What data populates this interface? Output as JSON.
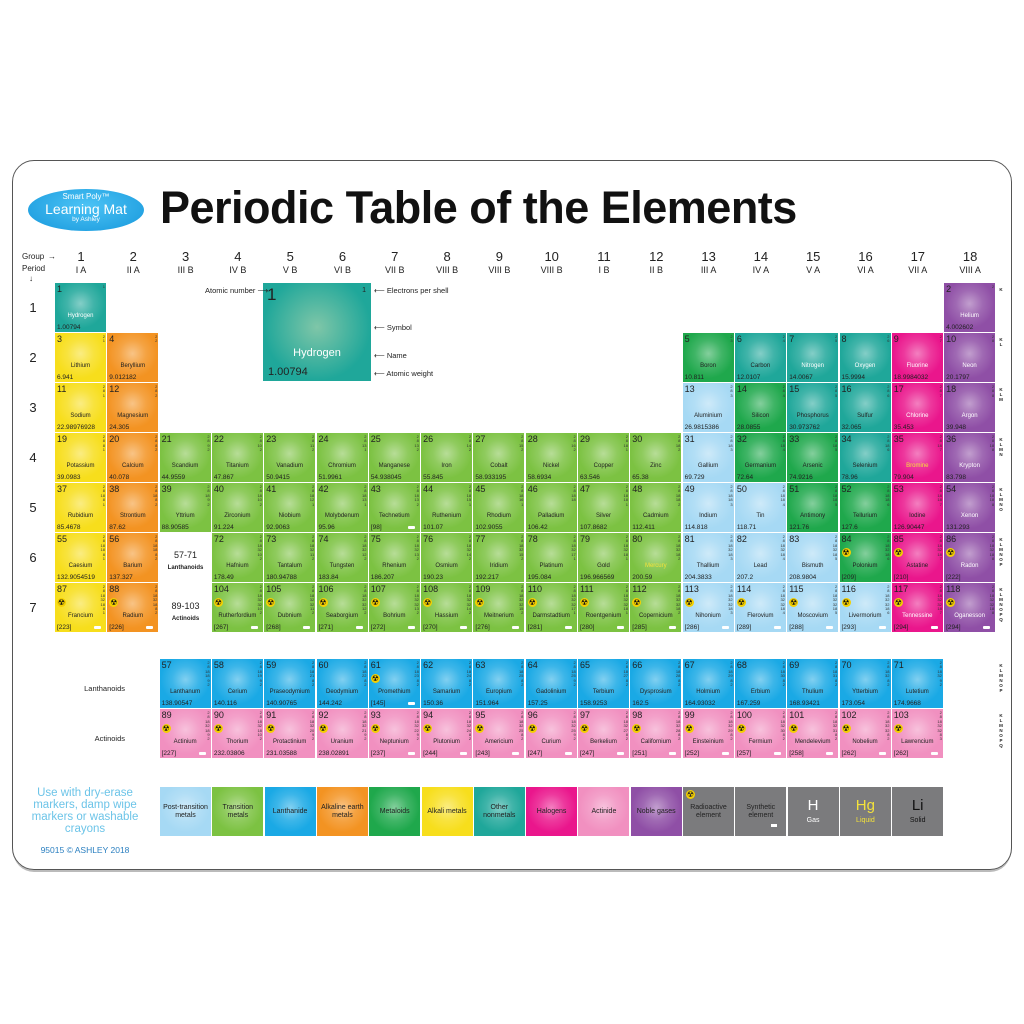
{
  "logo": {
    "line1": "Smart Poly™",
    "line2": "Learning Mat",
    "line3": "by Ashley"
  },
  "title": "Periodic Table of the Elements",
  "axis_labels": {
    "group": "Group",
    "period": "Period"
  },
  "groups": [
    [
      "1",
      "I A"
    ],
    [
      "2",
      "II A"
    ],
    [
      "3",
      "III B"
    ],
    [
      "4",
      "IV B"
    ],
    [
      "5",
      "V B"
    ],
    [
      "6",
      "VI B"
    ],
    [
      "7",
      "VII B"
    ],
    [
      "8",
      "VIII B"
    ],
    [
      "9",
      "VIII B"
    ],
    [
      "10",
      "VIII B"
    ],
    [
      "11",
      "I B"
    ],
    [
      "12",
      "II B"
    ],
    [
      "13",
      "III A"
    ],
    [
      "14",
      "IV A"
    ],
    [
      "15",
      "V A"
    ],
    [
      "16",
      "VI A"
    ],
    [
      "17",
      "VII A"
    ],
    [
      "18",
      "VIII A"
    ]
  ],
  "periods": [
    "1",
    "2",
    "3",
    "4",
    "5",
    "6",
    "7"
  ],
  "shell_labels": [
    "K",
    "K\nL",
    "K\nL\nM",
    "K\nL\nM\nN",
    "K\nL\nM\nN\nO",
    "K\nL\nM\nN\nO\nP",
    "K\nL\nM\nN\nO\nP\nQ"
  ],
  "f_shell_labels": [
    "K\nL\nM\nN\nO\nP",
    "K\nL\nM\nN\nO\nP\nQ"
  ],
  "key": {
    "number": "1",
    "electrons": "1",
    "name": "Hydrogen",
    "weight": "1.00794",
    "labels": {
      "atomic_number": "Atomic number",
      "electrons": "Electrons per shell",
      "symbol": "Symbol",
      "name": "Name",
      "weight": "Atomic weight"
    }
  },
  "placeholders": {
    "lanthanoids": {
      "range": "57-71",
      "label": "Lanthanoids"
    },
    "actinoids": {
      "range": "89-103",
      "label": "Actinoids"
    }
  },
  "row_labels": {
    "lanthanoids": "Lanthanoids",
    "actinoids": "Actinoids"
  },
  "categories": {
    "al": "#f7de1c",
    "ae": "#f39322",
    "tm": "#7cc242",
    "pt": "#a6d9f4",
    "md": "#1fa84c",
    "on": "#1fa79a",
    "ha": "#ea168c",
    "ng": "#8f4fa6",
    "la": "#1aa9e5",
    "ac": "#f190c0"
  },
  "name_colors": {
    "gas": "#ffffff",
    "liquid": "#f4e23a",
    "solid": "#222222"
  },
  "elements": [
    {
      "n": 1,
      "name": "Hydrogen",
      "w": "1.00794",
      "e": "1",
      "c": "on",
      "st": "gas"
    },
    {
      "n": 2,
      "name": "Helium",
      "w": "4.002602",
      "e": "2",
      "c": "ng",
      "st": "gas"
    },
    {
      "n": 3,
      "name": "Lithium",
      "w": "6.941",
      "e": "2 1",
      "c": "al"
    },
    {
      "n": 4,
      "name": "Beryllium",
      "w": "9.012182",
      "e": "2 2",
      "c": "ae"
    },
    {
      "n": 5,
      "name": "Boron",
      "w": "10.811",
      "e": "2 3",
      "c": "md"
    },
    {
      "n": 6,
      "name": "Carbon",
      "w": "12.0107",
      "e": "2 4",
      "c": "on"
    },
    {
      "n": 7,
      "name": "Nitrogen",
      "w": "14.0067",
      "e": "2 5",
      "c": "on",
      "st": "gas"
    },
    {
      "n": 8,
      "name": "Oxygen",
      "w": "15.9994",
      "e": "2 6",
      "c": "on",
      "st": "gas"
    },
    {
      "n": 9,
      "name": "Fluorine",
      "w": "18.9984032",
      "e": "2 7",
      "c": "ha",
      "st": "gas"
    },
    {
      "n": 10,
      "name": "Neon",
      "w": "20.1797",
      "e": "2 8",
      "c": "ng",
      "st": "gas"
    },
    {
      "n": 11,
      "name": "Sodium",
      "w": "22.98976928",
      "e": "2 8 1",
      "c": "al"
    },
    {
      "n": 12,
      "name": "Magnesium",
      "w": "24.305",
      "e": "2 8 2",
      "c": "ae"
    },
    {
      "n": 13,
      "name": "Aluminium",
      "w": "26.9815386",
      "e": "2 8 3",
      "c": "pt"
    },
    {
      "n": 14,
      "name": "Silicon",
      "w": "28.0855",
      "e": "2 8 4",
      "c": "md"
    },
    {
      "n": 15,
      "name": "Phosphorus",
      "w": "30.973762",
      "e": "2 8 5",
      "c": "on"
    },
    {
      "n": 16,
      "name": "Sulfur",
      "w": "32.065",
      "e": "2 8 6",
      "c": "on"
    },
    {
      "n": 17,
      "name": "Chlorine",
      "w": "35.453",
      "e": "2 8 7",
      "c": "ha",
      "st": "gas"
    },
    {
      "n": 18,
      "name": "Argon",
      "w": "39.948",
      "e": "2 8 8",
      "c": "ng",
      "st": "gas"
    },
    {
      "n": 19,
      "name": "Potassium",
      "w": "39.0983",
      "e": "2 8 8 1",
      "c": "al"
    },
    {
      "n": 20,
      "name": "Calcium",
      "w": "40.078",
      "e": "2 8 8 2",
      "c": "ae"
    },
    {
      "n": 21,
      "name": "Scandium",
      "w": "44.9559",
      "e": "2 8 9 2",
      "c": "tm"
    },
    {
      "n": 22,
      "name": "Titanium",
      "w": "47.867",
      "e": "2 8 10 2",
      "c": "tm"
    },
    {
      "n": 23,
      "name": "Vanadium",
      "w": "50.9415",
      "e": "2 8 11 2",
      "c": "tm"
    },
    {
      "n": 24,
      "name": "Chromium",
      "w": "51.9961",
      "e": "2 8 13 1",
      "c": "tm"
    },
    {
      "n": 25,
      "name": "Manganese",
      "w": "54.938045",
      "e": "2 8 13 2",
      "c": "tm"
    },
    {
      "n": 26,
      "name": "Iron",
      "w": "55.845",
      "e": "2 8 14 2",
      "c": "tm"
    },
    {
      "n": 27,
      "name": "Cobalt",
      "w": "58.933195",
      "e": "2 8 15 2",
      "c": "tm"
    },
    {
      "n": 28,
      "name": "Nickel",
      "w": "58.6934",
      "e": "2 8 16 2",
      "c": "tm"
    },
    {
      "n": 29,
      "name": "Copper",
      "w": "63.546",
      "e": "2 8 18 1",
      "c": "tm"
    },
    {
      "n": 30,
      "name": "Zinc",
      "w": "65.38",
      "e": "2 8 18 2",
      "c": "tm"
    },
    {
      "n": 31,
      "name": "Gallium",
      "w": "69.729",
      "e": "2 8 18 3",
      "c": "pt"
    },
    {
      "n": 32,
      "name": "Germanium",
      "w": "72.64",
      "e": "2 8 18 4",
      "c": "md"
    },
    {
      "n": 33,
      "name": "Arsenic",
      "w": "74.9216",
      "e": "2 8 18 5",
      "c": "md"
    },
    {
      "n": 34,
      "name": "Selenium",
      "w": "78.96",
      "e": "2 8 18 6",
      "c": "on"
    },
    {
      "n": 35,
      "name": "Bromine",
      "w": "79.904",
      "e": "2 8 18 7",
      "c": "ha",
      "st": "liquid"
    },
    {
      "n": 36,
      "name": "Krypton",
      "w": "83.798",
      "e": "2 8 18 8",
      "c": "ng",
      "st": "gas"
    },
    {
      "n": 37,
      "name": "Rubidium",
      "w": "85.4678",
      "e": "2 8 18 8 1",
      "c": "al"
    },
    {
      "n": 38,
      "name": "Strontium",
      "w": "87.62",
      "e": "2 8 18 8 2",
      "c": "ae"
    },
    {
      "n": 39,
      "name": "Yttrium",
      "w": "88.90585",
      "e": "2 8 18 9 2",
      "c": "tm"
    },
    {
      "n": 40,
      "name": "Zirconium",
      "w": "91.224",
      "e": "2 8 18 10 2",
      "c": "tm"
    },
    {
      "n": 41,
      "name": "Niobium",
      "w": "92.9063",
      "e": "2 8 18 12 1",
      "c": "tm"
    },
    {
      "n": 42,
      "name": "Molybdenum",
      "w": "95.96",
      "e": "2 8 18 13 1",
      "c": "tm"
    },
    {
      "n": 43,
      "name": "Technetium",
      "w": "[98]",
      "e": "2 8 18 13 2",
      "c": "tm",
      "sy": 1
    },
    {
      "n": 44,
      "name": "Ruthenium",
      "w": "101.07",
      "e": "2 8 18 15 1",
      "c": "tm"
    },
    {
      "n": 45,
      "name": "Rhodium",
      "w": "102.9055",
      "e": "2 8 18 16 1",
      "c": "tm"
    },
    {
      "n": 46,
      "name": "Palladium",
      "w": "106.42",
      "e": "2 8 18 18",
      "c": "tm"
    },
    {
      "n": 47,
      "name": "Silver",
      "w": "107.8682",
      "e": "2 8 18 18 1",
      "c": "tm"
    },
    {
      "n": 48,
      "name": "Cadmium",
      "w": "112.411",
      "e": "2 8 18 18 2",
      "c": "tm"
    },
    {
      "n": 49,
      "name": "Indium",
      "w": "114.818",
      "e": "2 8 18 18 3",
      "c": "pt"
    },
    {
      "n": 50,
      "name": "Tin",
      "w": "118.71",
      "e": "2 8 18 18 4",
      "c": "pt"
    },
    {
      "n": 51,
      "name": "Antimony",
      "w": "121.76",
      "e": "2 8 18 18 5",
      "c": "md"
    },
    {
      "n": 52,
      "name": "Tellurium",
      "w": "127.6",
      "e": "2 8 18 18 6",
      "c": "md"
    },
    {
      "n": 53,
      "name": "Iodine",
      "w": "126.90447",
      "e": "2 8 18 18 7",
      "c": "ha"
    },
    {
      "n": 54,
      "name": "Xenon",
      "w": "131.293",
      "e": "2 8 18 18 8",
      "c": "ng",
      "st": "gas"
    },
    {
      "n": 55,
      "name": "Caesium",
      "w": "132.9054519",
      "e": "2 8 18 18 8 1",
      "c": "al"
    },
    {
      "n": 56,
      "name": "Barium",
      "w": "137.327",
      "e": "2 8 18 18 8 2",
      "c": "ae"
    },
    {
      "n": 57,
      "name": "Lanthanum",
      "w": "138.90547",
      "e": "2 8 18 18 9 2",
      "c": "la"
    },
    {
      "n": 58,
      "name": "Cerium",
      "w": "140.116",
      "e": "2 8 18 19 9 2",
      "c": "la"
    },
    {
      "n": 59,
      "name": "Praseodymium",
      "w": "140.90765",
      "e": "2 8 18 21 8 2",
      "c": "la"
    },
    {
      "n": 60,
      "name": "Deodymium",
      "w": "144.242",
      "e": "2 8 18 22 8 2",
      "c": "la"
    },
    {
      "n": 61,
      "name": "Promethium",
      "w": "[145]",
      "e": "2 8 18 23 8 2",
      "c": "la",
      "r": 1,
      "sy": 1
    },
    {
      "n": 62,
      "name": "Samarium",
      "w": "150.36",
      "e": "2 8 18 24 8 2",
      "c": "la"
    },
    {
      "n": 63,
      "name": "Europium",
      "w": "151.964",
      "e": "2 8 18 25 8 2",
      "c": "la"
    },
    {
      "n": 64,
      "name": "Gadolinium",
      "w": "157.25",
      "e": "2 8 18 25 9 2",
      "c": "la"
    },
    {
      "n": 65,
      "name": "Terbium",
      "w": "158.9253",
      "e": "2 8 18 27 8 2",
      "c": "la"
    },
    {
      "n": 66,
      "name": "Dysprosium",
      "w": "162.5",
      "e": "2 8 18 28 8 2",
      "c": "la"
    },
    {
      "n": 67,
      "name": "Holmium",
      "w": "164.93032",
      "e": "2 8 18 29 8 2",
      "c": "la"
    },
    {
      "n": 68,
      "name": "Erbium",
      "w": "167.259",
      "e": "2 8 18 30 8 2",
      "c": "la"
    },
    {
      "n": 69,
      "name": "Thulium",
      "w": "168.93421",
      "e": "2 8 18 31 8 2",
      "c": "la"
    },
    {
      "n": 70,
      "name": "Ytterbium",
      "w": "173.054",
      "e": "2 8 18 32 8 2",
      "c": "la"
    },
    {
      "n": 71,
      "name": "Lutetium",
      "w": "174.9668",
      "e": "2 8 18 32 9 2",
      "c": "la"
    },
    {
      "n": 72,
      "name": "Hafnium",
      "w": "178.49",
      "e": "2 8 18 32 10 2",
      "c": "tm"
    },
    {
      "n": 73,
      "name": "Tantalum",
      "w": "180.94788",
      "e": "2 8 18 32 11 2",
      "c": "tm"
    },
    {
      "n": 74,
      "name": "Tungsten",
      "w": "183.84",
      "e": "2 8 18 32 12 2",
      "c": "tm"
    },
    {
      "n": 75,
      "name": "Rhenium",
      "w": "186.207",
      "e": "2 8 18 32 13 2",
      "c": "tm"
    },
    {
      "n": 76,
      "name": "Osmium",
      "w": "190.23",
      "e": "2 8 18 32 14 2",
      "c": "tm"
    },
    {
      "n": 77,
      "name": "Iridium",
      "w": "192.217",
      "e": "2 8 18 32 15 2",
      "c": "tm"
    },
    {
      "n": 78,
      "name": "Platinum",
      "w": "195.084",
      "e": "2 8 18 32 17 1",
      "c": "tm"
    },
    {
      "n": 79,
      "name": "Gold",
      "w": "196.966569",
      "e": "2 8 18 32 18 1",
      "c": "tm"
    },
    {
      "n": 80,
      "name": "Mercury",
      "w": "200.59",
      "e": "2 8 18 32 18 2",
      "c": "tm",
      "st": "liquid"
    },
    {
      "n": 81,
      "name": "Thallium",
      "w": "204.3833",
      "e": "2 8 18 32 18 3",
      "c": "pt"
    },
    {
      "n": 82,
      "name": "Lead",
      "w": "207.2",
      "e": "2 8 18 32 18 4",
      "c": "pt"
    },
    {
      "n": 83,
      "name": "Bismuth",
      "w": "208.9804",
      "e": "2 8 18 32 18 5",
      "c": "pt"
    },
    {
      "n": 84,
      "name": "Polonium",
      "w": "[209]",
      "e": "2 8 18 32 18 6",
      "c": "md",
      "r": 1
    },
    {
      "n": 85,
      "name": "Astatine",
      "w": "[210]",
      "e": "2 8 18 32 18 7",
      "c": "ha",
      "r": 1
    },
    {
      "n": 86,
      "name": "Radon",
      "w": "[222]",
      "e": "2 8 18 32 18 8",
      "c": "ng",
      "st": "gas",
      "r": 1
    },
    {
      "n": 87,
      "name": "Francium",
      "w": "[223]",
      "e": "2 8 18 32 18 8 1",
      "c": "al",
      "r": 1,
      "sy": 1
    },
    {
      "n": 88,
      "name": "Radium",
      "w": "[226]",
      "e": "2 8 18 32 18 8 2",
      "c": "ae",
      "r": 1,
      "sy": 1
    },
    {
      "n": 89,
      "name": "Actinium",
      "w": "[227]",
      "e": "2 8 18 32 18 9 2",
      "c": "ac",
      "r": 1,
      "sy": 1
    },
    {
      "n": 90,
      "name": "Thorium",
      "w": "232.03806",
      "e": "2 8 18 32 18 10 2",
      "c": "ac",
      "r": 1
    },
    {
      "n": 91,
      "name": "Protactinium",
      "w": "231.03588",
      "e": "2 8 18 32 20 9 2",
      "c": "ac",
      "r": 1
    },
    {
      "n": 92,
      "name": "Uranium",
      "w": "238.02891",
      "e": "2 8 18 32 21 9 2",
      "c": "ac",
      "r": 1
    },
    {
      "n": 93,
      "name": "Neptunium",
      "w": "[237]",
      "e": "2 8 18 32 22 9 2",
      "c": "ac",
      "r": 1,
      "sy": 1
    },
    {
      "n": 94,
      "name": "Plutonium",
      "w": "[244]",
      "e": "2 8 18 32 24 8 2",
      "c": "ac",
      "r": 1,
      "sy": 1
    },
    {
      "n": 95,
      "name": "Americium",
      "w": "[243]",
      "e": "2 8 18 32 25 8 2",
      "c": "ac",
      "r": 1,
      "sy": 1
    },
    {
      "n": 96,
      "name": "Curium",
      "w": "[247]",
      "e": "2 8 18 32 25 9 2",
      "c": "ac",
      "r": 1,
      "sy": 1
    },
    {
      "n": 97,
      "name": "Berkelium",
      "w": "[247]",
      "e": "2 8 18 32 27 8 2",
      "c": "ac",
      "r": 1,
      "sy": 1
    },
    {
      "n": 98,
      "name": "Californium",
      "w": "[251]",
      "e": "2 8 18 32 28 8 2",
      "c": "ac",
      "r": 1,
      "sy": 1
    },
    {
      "n": 99,
      "name": "Einsteinium",
      "w": "[252]",
      "e": "2 8 18 32 29 8 2",
      "c": "ac",
      "r": 1,
      "sy": 1
    },
    {
      "n": 100,
      "name": "Fermium",
      "w": "[257]",
      "e": "2 8 18 32 30 8 2",
      "c": "ac",
      "r": 1,
      "sy": 1
    },
    {
      "n": 101,
      "name": "Mendelevium",
      "w": "[258]",
      "e": "2 8 18 32 31 8 2",
      "c": "ac",
      "r": 1,
      "sy": 1
    },
    {
      "n": 102,
      "name": "Nobelium",
      "w": "[262]",
      "e": "2 8 18 32 32 8 2",
      "c": "ac",
      "r": 1,
      "sy": 1
    },
    {
      "n": 103,
      "name": "Lawrencium",
      "w": "[262]",
      "e": "2 8 18 32 32 8 3",
      "c": "ac",
      "r": 1,
      "sy": 1
    },
    {
      "n": 104,
      "name": "Rutherfordium",
      "w": "[267]",
      "e": "2 8 18 32 32 10 2",
      "c": "tm",
      "r": 1,
      "sy": 1
    },
    {
      "n": 105,
      "name": "Dubnium",
      "w": "[268]",
      "e": "2 8 18 32 32 11 2",
      "c": "tm",
      "r": 1,
      "sy": 1
    },
    {
      "n": 106,
      "name": "Seaborgium",
      "w": "[271]",
      "e": "2 8 18 32 32 12 2",
      "c": "tm",
      "r": 1,
      "sy": 1
    },
    {
      "n": 107,
      "name": "Bohrium",
      "w": "[272]",
      "e": "2 8 18 32 32 13 2",
      "c": "tm",
      "r": 1,
      "sy": 1
    },
    {
      "n": 108,
      "name": "Hassium",
      "w": "[270]",
      "e": "2 8 18 32 32 14 2",
      "c": "tm",
      "r": 1,
      "sy": 1
    },
    {
      "n": 109,
      "name": "Meitnerium",
      "w": "[276]",
      "e": "2 8 18 32 32 15 2",
      "c": "tm",
      "r": 1,
      "sy": 1
    },
    {
      "n": 110,
      "name": "Darmstadtium",
      "w": "[281]",
      "e": "2 8 18 32 32 17 1",
      "c": "tm",
      "r": 1,
      "sy": 1
    },
    {
      "n": 111,
      "name": "Roentgenium",
      "w": "[280]",
      "e": "2 8 18 32 32 18 1",
      "c": "tm",
      "r": 1,
      "sy": 1
    },
    {
      "n": 112,
      "name": "Copernicium",
      "w": "[285]",
      "e": "2 8 18 32 32 18 2",
      "c": "tm",
      "r": 1,
      "sy": 1
    },
    {
      "n": 113,
      "name": "Nihonium",
      "w": "[286]",
      "e": "2 8 18 32 32 18 3",
      "c": "pt",
      "r": 1,
      "sy": 1
    },
    {
      "n": 114,
      "name": "Flerovium",
      "w": "[289]",
      "e": "2 8 18 32 32 18 4",
      "c": "pt",
      "r": 1,
      "sy": 1
    },
    {
      "n": 115,
      "name": "Moscovium",
      "w": "[288]",
      "e": "2 8 18 32 32 18 5",
      "c": "pt",
      "r": 1,
      "sy": 1
    },
    {
      "n": 116,
      "name": "Livermorium",
      "w": "[293]",
      "e": "2 8 18 32 32 18 6",
      "c": "pt",
      "r": 1,
      "sy": 1
    },
    {
      "n": 117,
      "name": "Tennessine",
      "w": "[294]",
      "e": "2 8 18 32 32 18 7",
      "c": "ha",
      "st": "gas",
      "r": 1,
      "sy": 1
    },
    {
      "n": 118,
      "name": "Oganesson",
      "w": "[294]",
      "e": "2 8 18 32 32 18 8",
      "c": "ng",
      "st": "gas",
      "r": 1,
      "sy": 1
    }
  ],
  "legend": [
    {
      "label": "Post-transition metals",
      "c": "pt"
    },
    {
      "label": "Transition metals",
      "c": "tm"
    },
    {
      "label": "Lanthanide",
      "c": "la"
    },
    {
      "label": "Alkaline earth metals",
      "c": "ae"
    },
    {
      "label": "Metaloids",
      "c": "md"
    },
    {
      "label": "Alkali metals",
      "c": "al"
    },
    {
      "label": "Other nonmetals",
      "c": "on"
    },
    {
      "label": "Halogens",
      "c": "ha"
    },
    {
      "label": "Actinide",
      "c": "ac"
    },
    {
      "label": "Noble gases",
      "c": "ng"
    },
    {
      "label": "Radioactive element",
      "icon": "radioactive-icon"
    },
    {
      "label": "Synthetic element",
      "icon": "synthetic-mark-icon"
    },
    {
      "symbol": "H",
      "label": "Gas",
      "st": "gas"
    },
    {
      "symbol": "Hg",
      "label": "Liquid",
      "st": "liquid"
    },
    {
      "symbol": "Li",
      "label": "Solid",
      "st": "solid"
    }
  ],
  "note": "Use with dry-erase markers, damp wipe markers or washable crayons",
  "copyright": "95015 © ASHLEY 2018"
}
